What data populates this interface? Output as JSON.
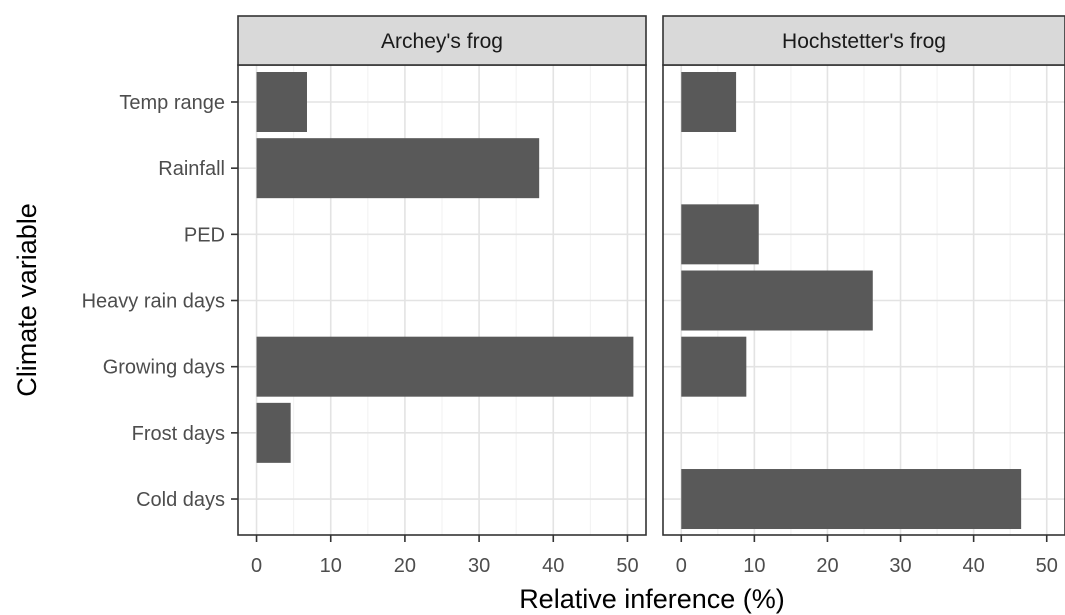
{
  "chart_data": {
    "type": "bar",
    "orientation": "horizontal",
    "facet": "columns",
    "xlabel": "Relative inference (%)",
    "ylabel": "Climate variable",
    "xlim": [
      -2.5,
      52.5
    ],
    "xticks": [
      0,
      10,
      20,
      30,
      40,
      50
    ],
    "grid": true,
    "theme": "bw",
    "bar_color": "#595959",
    "categories": [
      "Temp range",
      "Rainfall",
      "PED",
      "Heavy rain days",
      "Growing days",
      "Frost days",
      "Cold days"
    ],
    "panels": [
      {
        "name": "Archey's frog",
        "values": [
          6.8,
          38.1,
          0,
          0,
          50.8,
          4.6,
          0
        ]
      },
      {
        "name": "Hochstetter's frog",
        "values": [
          7.5,
          0,
          10.6,
          26.2,
          8.9,
          0,
          46.5
        ]
      }
    ]
  }
}
